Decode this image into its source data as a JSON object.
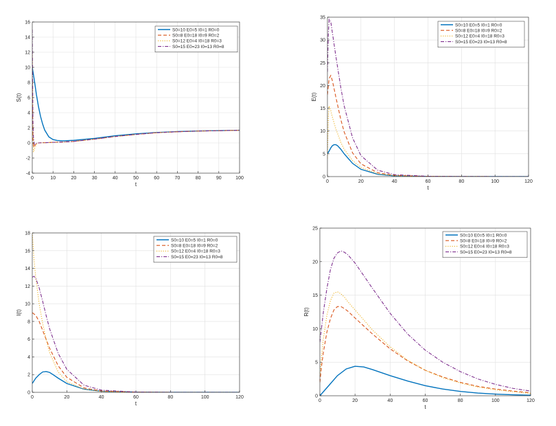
{
  "colors": {
    "series": [
      "#0072bd",
      "#d95319",
      "#edb120",
      "#7e2f8e"
    ],
    "grid": "#dfdfdf",
    "axis": "#262626",
    "background": "#ffffff"
  },
  "legend_labels": [
    "S0=10 E0=5 I0=1 R0=0",
    "S0=8 E0=18 I0=9 R0=2",
    "S0=12 E0=4 I0=18 R0=3",
    "S0=15 E0=23 I0=13 R0=8"
  ],
  "line_styles": [
    "solid",
    "dashed",
    "dotted",
    "dashdot"
  ],
  "chart_data": [
    {
      "type": "line",
      "title": "",
      "xlabel": "t",
      "ylabel": "S(t)",
      "xlim": [
        0,
        100
      ],
      "ylim": [
        -4,
        16
      ],
      "xticks": [
        0,
        10,
        20,
        30,
        40,
        50,
        60,
        70,
        80,
        90,
        100
      ],
      "yticks": [
        -4,
        -2,
        0,
        2,
        4,
        6,
        8,
        10,
        12,
        14,
        16
      ],
      "grid": true,
      "legend_location": "top-right",
      "series": [
        {
          "name": "S0=10 E0=5 I0=1 R0=0",
          "x": [
            0,
            1,
            2,
            3,
            4,
            5,
            6,
            8,
            10,
            12,
            15,
            20,
            30,
            40,
            50,
            60,
            70,
            80,
            90,
            100
          ],
          "y": [
            10,
            8.3,
            6.4,
            4.8,
            3.5,
            2.5,
            1.7,
            0.8,
            0.45,
            0.32,
            0.28,
            0.35,
            0.6,
            0.95,
            1.2,
            1.38,
            1.5,
            1.58,
            1.63,
            1.68
          ]
        },
        {
          "name": "S0=8 E0=18 I0=9 R0=2",
          "x": [
            0,
            0.3,
            0.6,
            1,
            2,
            3,
            5,
            8,
            10,
            15,
            20,
            30,
            40,
            50,
            60,
            70,
            80,
            90,
            100
          ],
          "y": [
            8,
            0.5,
            -0.6,
            -0.4,
            -0.1,
            0,
            0.03,
            0.05,
            0.08,
            0.12,
            0.2,
            0.5,
            0.85,
            1.12,
            1.35,
            1.48,
            1.57,
            1.62,
            1.67
          ]
        },
        {
          "name": "S0=12 E0=4 I0=18 R0=3",
          "x": [
            0,
            0.3,
            0.6,
            1,
            2,
            3,
            5,
            8,
            10,
            15,
            20,
            30,
            40,
            50,
            60,
            70,
            80,
            90,
            100
          ],
          "y": [
            12,
            1.5,
            -1.2,
            -0.8,
            -0.2,
            0,
            0.03,
            0.05,
            0.08,
            0.12,
            0.2,
            0.5,
            0.85,
            1.12,
            1.35,
            1.48,
            1.57,
            1.62,
            1.67
          ]
        },
        {
          "name": "S0=15 E0=23 I0=13 R0=8",
          "x": [
            0,
            0.3,
            0.6,
            1,
            2,
            3,
            5,
            8,
            10,
            15,
            20,
            30,
            40,
            50,
            60,
            70,
            80,
            90,
            100
          ],
          "y": [
            15,
            3,
            0.6,
            -0.2,
            -0.05,
            0,
            0.03,
            0.05,
            0.08,
            0.12,
            0.2,
            0.5,
            0.85,
            1.12,
            1.35,
            1.48,
            1.57,
            1.62,
            1.67
          ]
        }
      ]
    },
    {
      "type": "line",
      "title": "",
      "xlabel": "t",
      "ylabel": "E(t)",
      "xlim": [
        0,
        120
      ],
      "ylim": [
        0,
        35
      ],
      "xticks": [
        0,
        20,
        40,
        60,
        80,
        100,
        120
      ],
      "yticks": [
        0,
        5,
        10,
        15,
        20,
        25,
        30,
        35
      ],
      "grid": true,
      "legend_location": "top-right",
      "series": [
        {
          "name": "S0=10 E0=5 I0=1 R0=0",
          "x": [
            0,
            1,
            2,
            3,
            4,
            5,
            6,
            8,
            10,
            15,
            20,
            30,
            40,
            60,
            80,
            100,
            120
          ],
          "y": [
            5,
            5.6,
            6.3,
            6.8,
            7,
            7,
            6.8,
            6,
            5,
            2.9,
            1.6,
            0.5,
            0.17,
            0.03,
            0.01,
            0,
            0
          ]
        },
        {
          "name": "S0=8 E0=18 I0=9 R0=2",
          "x": [
            0,
            1,
            2,
            3,
            5,
            8,
            10,
            15,
            20,
            30,
            40,
            60,
            80,
            100,
            120
          ],
          "y": [
            18,
            21.5,
            22.2,
            21,
            17.5,
            12.5,
            9.8,
            5.2,
            2.8,
            0.85,
            0.25,
            0.04,
            0.01,
            0,
            0
          ]
        },
        {
          "name": "S0=12 E0=4 I0=18 R0=3",
          "x": [
            0,
            0.5,
            1,
            2,
            3,
            5,
            8,
            10,
            15,
            20,
            30,
            40,
            60,
            80,
            100,
            120
          ],
          "y": [
            4,
            13,
            15.5,
            14.5,
            13,
            10.5,
            7.5,
            6,
            3.5,
            2,
            0.6,
            0.2,
            0.03,
            0.01,
            0,
            0
          ]
        },
        {
          "name": "S0=15 E0=23 I0=13 R0=8",
          "x": [
            0,
            0.5,
            1,
            2,
            3,
            5,
            8,
            10,
            15,
            20,
            30,
            40,
            60,
            80,
            100,
            120
          ],
          "y": [
            23,
            31,
            34.5,
            34,
            31.5,
            26.5,
            19.5,
            15.5,
            8.5,
            4.6,
            1.4,
            0.42,
            0.06,
            0.01,
            0,
            0
          ]
        }
      ]
    },
    {
      "type": "line",
      "title": "",
      "xlabel": "t",
      "ylabel": "I(t)",
      "xlim": [
        0,
        120
      ],
      "ylim": [
        0,
        18
      ],
      "xticks": [
        0,
        20,
        40,
        60,
        80,
        100,
        120
      ],
      "yticks": [
        0,
        2,
        4,
        6,
        8,
        10,
        12,
        14,
        16,
        18
      ],
      "grid": true,
      "legend_location": "top-right",
      "series": [
        {
          "name": "S0=10 E0=5 I0=1 R0=0",
          "x": [
            0,
            2,
            4,
            6,
            8,
            10,
            12,
            15,
            20,
            30,
            40,
            60,
            80,
            100,
            120
          ],
          "y": [
            1,
            1.6,
            2,
            2.3,
            2.35,
            2.25,
            2,
            1.6,
            1,
            0.35,
            0.12,
            0.02,
            0,
            0,
            0
          ]
        },
        {
          "name": "S0=8 E0=18 I0=9 R0=2",
          "x": [
            0,
            2,
            4,
            6,
            8,
            10,
            15,
            20,
            30,
            40,
            60,
            80,
            100,
            120
          ],
          "y": [
            9,
            8.7,
            8,
            7,
            6,
            5,
            3,
            1.7,
            0.5,
            0.15,
            0.02,
            0,
            0,
            0
          ]
        },
        {
          "name": "S0=12 E0=4 I0=18 R0=3",
          "x": [
            0,
            1,
            2,
            4,
            6,
            8,
            10,
            15,
            20,
            30,
            40,
            60,
            80,
            100,
            120
          ],
          "y": [
            18,
            15,
            13,
            10,
            7.8,
            6,
            4.5,
            2.3,
            1.2,
            0.35,
            0.1,
            0.01,
            0,
            0,
            0
          ]
        },
        {
          "name": "S0=15 E0=23 I0=13 R0=8",
          "x": [
            0,
            1,
            2,
            4,
            6,
            8,
            10,
            15,
            20,
            30,
            40,
            60,
            80,
            100,
            120
          ],
          "y": [
            13,
            13.1,
            12.9,
            11.8,
            10.3,
            8.7,
            7.2,
            4.4,
            2.6,
            0.8,
            0.25,
            0.03,
            0,
            0,
            0
          ]
        }
      ]
    },
    {
      "type": "line",
      "title": "",
      "xlabel": "t",
      "ylabel": "R(t)",
      "xlim": [
        0,
        120
      ],
      "ylim": [
        0,
        25
      ],
      "xticks": [
        0,
        20,
        40,
        60,
        80,
        100,
        120
      ],
      "yticks": [
        0,
        5,
        10,
        15,
        20,
        25
      ],
      "grid": true,
      "legend_location": "top-right",
      "series": [
        {
          "name": "S0=10 E0=5 I0=1 R0=0",
          "x": [
            0,
            5,
            10,
            15,
            20,
            25,
            30,
            40,
            50,
            60,
            70,
            80,
            90,
            100,
            110,
            120
          ],
          "y": [
            0,
            1.5,
            3,
            4,
            4.4,
            4.3,
            3.9,
            3,
            2.2,
            1.5,
            1,
            0.65,
            0.4,
            0.25,
            0.15,
            0.08
          ]
        },
        {
          "name": "S0=8 E0=18 I0=9 R0=2",
          "x": [
            0,
            1,
            2,
            4,
            6,
            8,
            10,
            12,
            14,
            16,
            20,
            30,
            40,
            50,
            60,
            70,
            80,
            90,
            100,
            110,
            120
          ],
          "y": [
            2,
            4.5,
            6.5,
            9.5,
            11.5,
            12.8,
            13.3,
            13.3,
            13,
            12.6,
            11.6,
            9.2,
            7,
            5.2,
            3.8,
            2.8,
            2,
            1.4,
            1,
            0.7,
            0.45
          ]
        },
        {
          "name": "S0=12 E0=4 I0=18 R0=3",
          "x": [
            0,
            1,
            2,
            4,
            6,
            8,
            10,
            12,
            14,
            16,
            20,
            30,
            40,
            50,
            60,
            70,
            80,
            90,
            100,
            110,
            120
          ],
          "y": [
            3,
            6,
            8.5,
            12,
            14.2,
            15.3,
            15.5,
            15.2,
            14.7,
            14,
            12.8,
            9.8,
            7.3,
            5.3,
            3.8,
            2.7,
            1.9,
            1.3,
            0.9,
            0.6,
            0.35
          ]
        },
        {
          "name": "S0=15 E0=23 I0=13 R0=8",
          "x": [
            0,
            2,
            4,
            6,
            8,
            10,
            12,
            14,
            16,
            20,
            30,
            40,
            50,
            60,
            70,
            80,
            90,
            100,
            110,
            120
          ],
          "y": [
            8,
            12.5,
            16,
            18.8,
            20.5,
            21.3,
            21.6,
            21.4,
            21,
            19.8,
            16,
            12.3,
            9.2,
            6.8,
            5,
            3.6,
            2.5,
            1.7,
            1.1,
            0.7
          ]
        }
      ]
    }
  ]
}
